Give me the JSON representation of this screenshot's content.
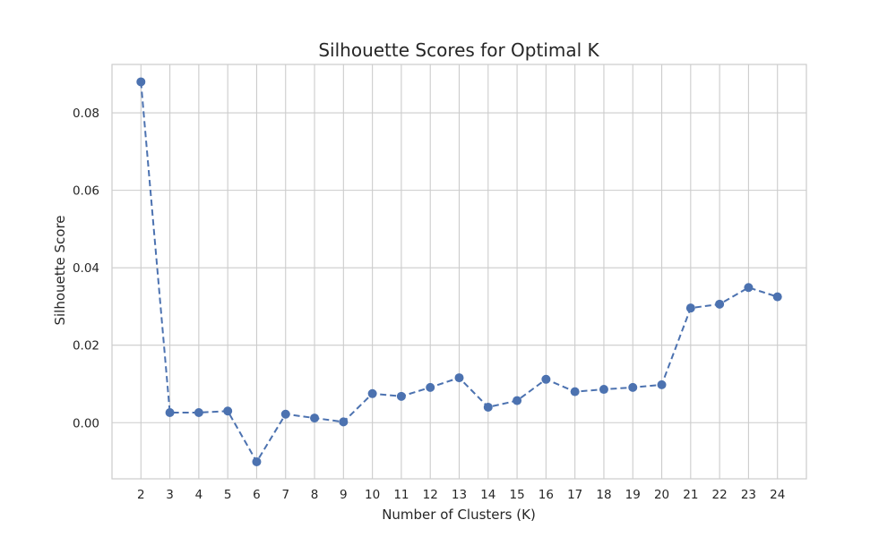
{
  "colors": {
    "series": "#4c72b0",
    "grid": "#cccccc",
    "text": "#262626",
    "background": "#ffffff"
  },
  "chart_data": {
    "type": "line",
    "title": "Silhouette Scores for Optimal K",
    "xlabel": "Number of Clusters (K)",
    "ylabel": "Silhouette Score",
    "x": [
      2,
      3,
      4,
      5,
      6,
      7,
      8,
      9,
      10,
      11,
      12,
      13,
      14,
      15,
      16,
      17,
      18,
      19,
      20,
      21,
      22,
      23,
      24
    ],
    "series": [
      {
        "line_style": "dashed",
        "marker": "circle",
        "color": "#4c72b0",
        "values": [
          0.088,
          0.0026,
          0.0026,
          0.003,
          -0.0101,
          0.0022,
          0.0012,
          0.0002,
          0.0075,
          0.0068,
          0.0091,
          0.0116,
          0.004,
          0.0057,
          0.0112,
          0.008,
          0.0086,
          0.0091,
          0.0098,
          0.0296,
          0.0306,
          0.0349,
          0.0325
        ]
      }
    ],
    "xticks": [
      2,
      3,
      4,
      5,
      6,
      7,
      8,
      9,
      10,
      11,
      12,
      13,
      14,
      15,
      16,
      17,
      18,
      19,
      20,
      21,
      22,
      23,
      24
    ],
    "yticks": [
      "0.00",
      "0.02",
      "0.04",
      "0.06",
      "0.08"
    ],
    "ytick_values": [
      0,
      0.02,
      0.04,
      0.06,
      0.08
    ],
    "xlim": [
      1,
      25
    ],
    "ylim": [
      -0.0145,
      0.0925
    ],
    "grid": true
  }
}
